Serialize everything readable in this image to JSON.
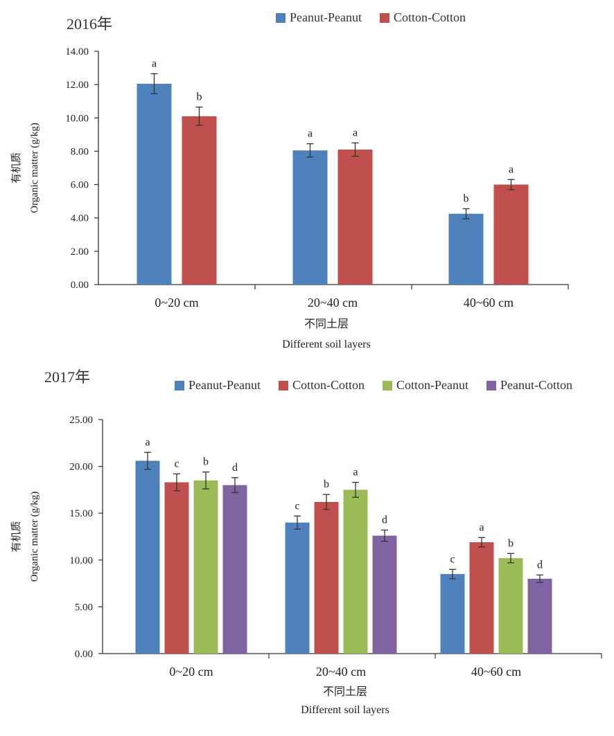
{
  "chart_data": [
    {
      "type": "bar",
      "title": "2016年",
      "ylabel_cn": "有机质",
      "ylabel": "Organic matter (g/kg)",
      "xlabel_cn": "不同土层",
      "xlabel": "Different soil layers",
      "categories": [
        "0~20 cm",
        "20~40 cm",
        "40~60 cm"
      ],
      "yticks": [
        "0.00",
        "2.00",
        "4.00",
        "6.00",
        "8.00",
        "10.00",
        "12.00",
        "14.00"
      ],
      "ylim": [
        0,
        14
      ],
      "legend_position": "top-right",
      "series": [
        {
          "name": "Peanut-Peanut",
          "color": "#4f81bd",
          "values": [
            12.05,
            8.05,
            4.25
          ],
          "errors": [
            0.6,
            0.4,
            0.3
          ],
          "letters": [
            "a",
            "a",
            "b"
          ]
        },
        {
          "name": "Cotton-Cotton",
          "color": "#c0504d",
          "values": [
            10.1,
            8.1,
            6.0
          ],
          "errors": [
            0.55,
            0.4,
            0.3
          ],
          "letters": [
            "b",
            "a",
            "a"
          ]
        }
      ]
    },
    {
      "type": "bar",
      "title": "2017年",
      "ylabel_cn": "有机质",
      "ylabel": "Organic matter (g/kg)",
      "xlabel_cn": "不同土层",
      "xlabel": "Different soil layers",
      "categories": [
        "0~20 cm",
        "20~40 cm",
        "40~60 cm"
      ],
      "yticks": [
        "0.00",
        "5.00",
        "10.00",
        "15.00",
        "20.00",
        "25.00"
      ],
      "ylim": [
        0,
        25
      ],
      "legend_position": "top-right",
      "series": [
        {
          "name": "Peanut-Peanut",
          "color": "#4f81bd",
          "values": [
            20.6,
            14.0,
            8.5
          ],
          "errors": [
            0.9,
            0.7,
            0.5
          ],
          "letters": [
            "a",
            "c",
            "c"
          ]
        },
        {
          "name": "Cotton-Cotton",
          "color": "#c0504d",
          "values": [
            18.3,
            16.2,
            11.9
          ],
          "errors": [
            0.9,
            0.8,
            0.5
          ],
          "letters": [
            "c",
            "b",
            "a"
          ]
        },
        {
          "name": "Cotton-Peanut",
          "color": "#9bbb59",
          "values": [
            18.5,
            17.5,
            10.2
          ],
          "errors": [
            0.9,
            0.8,
            0.5
          ],
          "letters": [
            "b",
            "a",
            "b"
          ]
        },
        {
          "name": "Peanut-Cotton",
          "color": "#8064a2",
          "values": [
            18.0,
            12.6,
            8.0
          ],
          "errors": [
            0.8,
            0.6,
            0.4
          ],
          "letters": [
            "d",
            "d",
            "d"
          ]
        }
      ]
    }
  ]
}
